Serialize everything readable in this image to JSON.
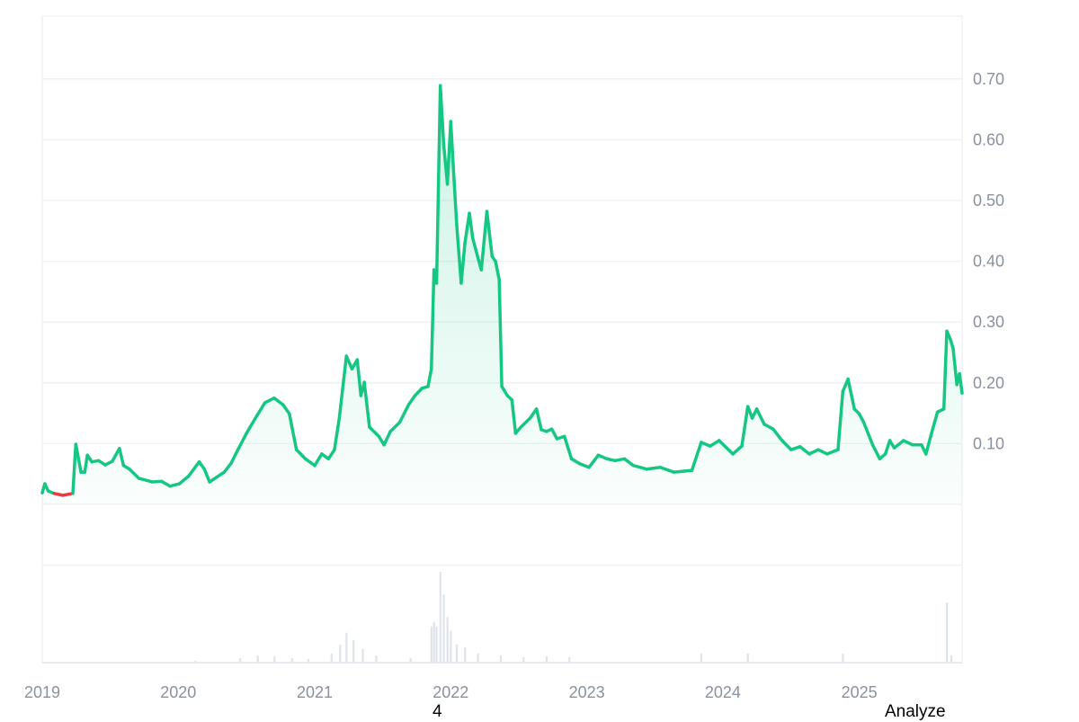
{
  "chart_data": {
    "type": "line",
    "title": "",
    "xlabel": "",
    "ylabel": "",
    "x_ticks": [
      "2019",
      "2020",
      "2021",
      "2022",
      "2023",
      "2024",
      "2025"
    ],
    "y_ticks": [
      "0.10",
      "0.20",
      "0.30",
      "0.40",
      "0.50",
      "0.60",
      "0.70"
    ],
    "ylim": [
      0,
      0.8
    ],
    "xlim": [
      "2019-01-01",
      "2025-10-04"
    ],
    "grid": true,
    "y_axis_side": "right",
    "colors": {
      "up": "#16c784",
      "down": "#ea3943",
      "grid": "#eff2f5",
      "volume": "#dfe3ea",
      "axis_text": "#8a919e"
    },
    "series": [
      {
        "points": [
          [
            "2019-01-01",
            0.019
          ],
          [
            "2019-01-08",
            0.034
          ],
          [
            "2019-01-17",
            0.022
          ],
          [
            "2019-02-02",
            0.018
          ],
          [
            "2019-02-25",
            0.015
          ],
          [
            "2019-03-24",
            0.018
          ],
          [
            "2019-04-01",
            0.099
          ],
          [
            "2019-04-15",
            0.053
          ],
          [
            "2019-04-25",
            0.053
          ],
          [
            "2019-05-02",
            0.081
          ],
          [
            "2019-05-14",
            0.07
          ],
          [
            "2019-06-01",
            0.072
          ],
          [
            "2019-06-19",
            0.065
          ],
          [
            "2019-07-08",
            0.071
          ],
          [
            "2019-07-27",
            0.092
          ],
          [
            "2019-08-07",
            0.064
          ],
          [
            "2019-08-23",
            0.058
          ],
          [
            "2019-09-17",
            0.043
          ],
          [
            "2019-10-23",
            0.037
          ],
          [
            "2019-11-17",
            0.038
          ],
          [
            "2019-12-10",
            0.03
          ],
          [
            "2020-01-04",
            0.034
          ],
          [
            "2020-01-28",
            0.046
          ],
          [
            "2020-02-26",
            0.07
          ],
          [
            "2020-03-11",
            0.058
          ],
          [
            "2020-03-25",
            0.037
          ],
          [
            "2020-05-03",
            0.053
          ],
          [
            "2020-05-22",
            0.068
          ],
          [
            "2020-06-09",
            0.09
          ],
          [
            "2020-07-02",
            0.117
          ],
          [
            "2020-07-26",
            0.142
          ],
          [
            "2020-08-20",
            0.167
          ],
          [
            "2020-09-14",
            0.175
          ],
          [
            "2020-10-08",
            0.164
          ],
          [
            "2020-10-25",
            0.149
          ],
          [
            "2020-11-13",
            0.09
          ],
          [
            "2020-12-07",
            0.075
          ],
          [
            "2021-01-01",
            0.064
          ],
          [
            "2021-01-20",
            0.083
          ],
          [
            "2021-02-07",
            0.075
          ],
          [
            "2021-02-23",
            0.09
          ],
          [
            "2021-03-08",
            0.142
          ],
          [
            "2021-03-27",
            0.244
          ],
          [
            "2021-04-11",
            0.223
          ],
          [
            "2021-04-25",
            0.238
          ],
          [
            "2021-05-05",
            0.179
          ],
          [
            "2021-05-14",
            0.201
          ],
          [
            "2021-05-28",
            0.127
          ],
          [
            "2021-06-22",
            0.112
          ],
          [
            "2021-07-06",
            0.098
          ],
          [
            "2021-07-23",
            0.12
          ],
          [
            "2021-08-17",
            0.135
          ],
          [
            "2021-09-10",
            0.164
          ],
          [
            "2021-09-27",
            0.179
          ],
          [
            "2021-10-16",
            0.191
          ],
          [
            "2021-11-01",
            0.194
          ],
          [
            "2021-11-10",
            0.223
          ],
          [
            "2021-11-17",
            0.386
          ],
          [
            "2021-11-24",
            0.364
          ],
          [
            "2021-12-04",
            0.689
          ],
          [
            "2021-12-13",
            0.593
          ],
          [
            "2021-12-23",
            0.527
          ],
          [
            "2022-01-01",
            0.63
          ],
          [
            "2022-01-10",
            0.533
          ],
          [
            "2022-01-17",
            0.46
          ],
          [
            "2022-01-29",
            0.364
          ],
          [
            "2022-02-08",
            0.43
          ],
          [
            "2022-02-20",
            0.479
          ],
          [
            "2022-03-01",
            0.438
          ],
          [
            "2022-03-14",
            0.408
          ],
          [
            "2022-03-24",
            0.386
          ],
          [
            "2022-04-08",
            0.482
          ],
          [
            "2022-04-22",
            0.408
          ],
          [
            "2022-05-01",
            0.4
          ],
          [
            "2022-05-11",
            0.37
          ],
          [
            "2022-05-18",
            0.194
          ],
          [
            "2022-06-02",
            0.179
          ],
          [
            "2022-06-14",
            0.172
          ],
          [
            "2022-06-24",
            0.117
          ],
          [
            "2022-07-08",
            0.127
          ],
          [
            "2022-08-02",
            0.142
          ],
          [
            "2022-08-19",
            0.157
          ],
          [
            "2022-09-01",
            0.123
          ],
          [
            "2022-09-15",
            0.12
          ],
          [
            "2022-09-29",
            0.124
          ],
          [
            "2022-10-13",
            0.108
          ],
          [
            "2022-11-02",
            0.112
          ],
          [
            "2022-11-21",
            0.075
          ],
          [
            "2022-12-13",
            0.067
          ],
          [
            "2023-01-07",
            0.061
          ],
          [
            "2023-02-01",
            0.081
          ],
          [
            "2023-02-24",
            0.075
          ],
          [
            "2023-03-18",
            0.072
          ],
          [
            "2023-04-12",
            0.075
          ],
          [
            "2023-05-06",
            0.064
          ],
          [
            "2023-06-11",
            0.058
          ],
          [
            "2023-07-17",
            0.061
          ],
          [
            "2023-08-23",
            0.053
          ],
          [
            "2023-10-10",
            0.056
          ],
          [
            "2023-11-04",
            0.102
          ],
          [
            "2023-11-28",
            0.096
          ],
          [
            "2023-12-22",
            0.105
          ],
          [
            "2024-01-16",
            0.09
          ],
          [
            "2024-01-28",
            0.083
          ],
          [
            "2024-02-21",
            0.096
          ],
          [
            "2024-03-08",
            0.161
          ],
          [
            "2024-03-20",
            0.142
          ],
          [
            "2024-04-01",
            0.157
          ],
          [
            "2024-04-21",
            0.132
          ],
          [
            "2024-05-15",
            0.124
          ],
          [
            "2024-06-08",
            0.105
          ],
          [
            "2024-07-02",
            0.09
          ],
          [
            "2024-07-26",
            0.095
          ],
          [
            "2024-08-20",
            0.083
          ],
          [
            "2024-09-13",
            0.09
          ],
          [
            "2024-10-07",
            0.083
          ],
          [
            "2024-11-05",
            0.09
          ],
          [
            "2024-11-18",
            0.186
          ],
          [
            "2024-12-02",
            0.206
          ],
          [
            "2024-12-19",
            0.157
          ],
          [
            "2025-01-01",
            0.149
          ],
          [
            "2025-01-13",
            0.135
          ],
          [
            "2025-02-06",
            0.098
          ],
          [
            "2025-02-25",
            0.075
          ],
          [
            "2025-03-12",
            0.083
          ],
          [
            "2025-03-24",
            0.105
          ],
          [
            "2025-04-05",
            0.093
          ],
          [
            "2025-04-30",
            0.105
          ],
          [
            "2025-05-24",
            0.098
          ],
          [
            "2025-06-17",
            0.098
          ],
          [
            "2025-06-29",
            0.083
          ],
          [
            "2025-07-13",
            0.115
          ],
          [
            "2025-07-30",
            0.152
          ],
          [
            "2025-08-16",
            0.157
          ],
          [
            "2025-08-24",
            0.285
          ],
          [
            "2025-09-03",
            0.271
          ],
          [
            "2025-09-10",
            0.256
          ],
          [
            "2025-09-20",
            0.197
          ],
          [
            "2025-09-27",
            0.215
          ],
          [
            "2025-10-04",
            0.183
          ]
        ]
      }
    ],
    "volume_relative": [
      [
        "2020-02-15",
        0.02
      ],
      [
        "2020-06-15",
        0.05
      ],
      [
        "2020-08-01",
        0.08
      ],
      [
        "2020-09-15",
        0.07
      ],
      [
        "2020-11-01",
        0.05
      ],
      [
        "2020-12-15",
        0.04
      ],
      [
        "2021-02-15",
        0.1
      ],
      [
        "2021-03-10",
        0.2
      ],
      [
        "2021-03-27",
        0.33
      ],
      [
        "2021-04-15",
        0.25
      ],
      [
        "2021-05-10",
        0.15
      ],
      [
        "2021-06-15",
        0.08
      ],
      [
        "2021-09-15",
        0.05
      ],
      [
        "2021-11-10",
        0.4
      ],
      [
        "2021-11-17",
        0.45
      ],
      [
        "2021-11-24",
        0.4
      ],
      [
        "2021-12-04",
        1.0
      ],
      [
        "2021-12-13",
        0.75
      ],
      [
        "2021-12-23",
        0.5
      ],
      [
        "2022-01-01",
        0.35
      ],
      [
        "2022-01-17",
        0.2
      ],
      [
        "2022-02-08",
        0.17
      ],
      [
        "2022-03-15",
        0.1
      ],
      [
        "2022-05-15",
        0.08
      ],
      [
        "2022-07-15",
        0.06
      ],
      [
        "2022-09-15",
        0.07
      ],
      [
        "2022-11-15",
        0.06
      ],
      [
        "2023-11-04",
        0.1
      ],
      [
        "2024-03-08",
        0.1
      ],
      [
        "2024-11-18",
        0.1
      ],
      [
        "2025-08-24",
        0.66
      ],
      [
        "2025-09-05",
        0.08
      ]
    ]
  },
  "overlay_text": {
    "page_number": "4",
    "analyze_label": "Analyze"
  }
}
